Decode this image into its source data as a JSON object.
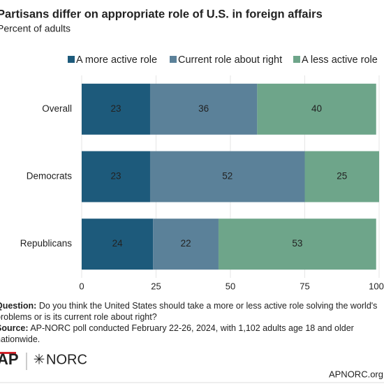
{
  "chart_data": {
    "type": "stacked-bar-horizontal",
    "title": "Partisans differ on appropriate role of U.S. in foreign affairs",
    "subtitle": "Percent of adults",
    "categories": [
      "Overall",
      "Democrats",
      "Republicans"
    ],
    "series": [
      {
        "name": "A more active role",
        "color": "#1d5a7b",
        "values": [
          23,
          23,
          24
        ]
      },
      {
        "name": "Current role about right",
        "color": "#5b8199",
        "values": [
          36,
          52,
          22
        ]
      },
      {
        "name": "A less active role",
        "color": "#6ea58a",
        "values": [
          40,
          25,
          53
        ]
      }
    ],
    "xlim": [
      0,
      100
    ],
    "xticks": [
      0,
      25,
      50,
      75,
      100
    ],
    "grid": true
  },
  "notes": {
    "question_label": "Question:",
    "question": "Do you think the United States should take a more or less active role solving the world's problems or is its current role about right?",
    "source_label": "Source:",
    "source": "AP-NORC poll conducted February 22-26, 2024, with 1,102 adults age 18 and older nationwide."
  },
  "footer": {
    "logo_left": "AP",
    "logo_right": "NORC",
    "website": "APNORC.org"
  }
}
